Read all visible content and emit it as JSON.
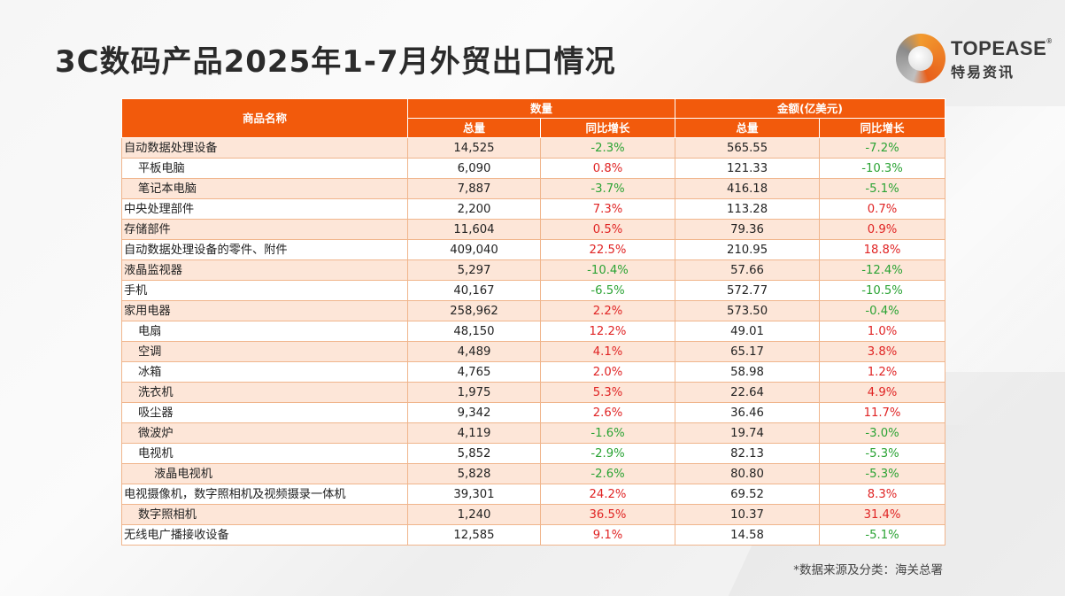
{
  "title": "3C数码产品2025年1-7月外贸出口情况",
  "logo": {
    "brand_en": "TOPEASE",
    "reg_mark": "®",
    "brand_cn": "特易资讯"
  },
  "colors": {
    "header": "#f25a0c",
    "row_odd": "#fde6d8",
    "row_even": "#ffffff",
    "increase": "#e02424",
    "decrease": "#2ba334"
  },
  "table": {
    "col_name": "商品名称",
    "group_qty": "数量",
    "group_amount": "金额(亿美元)",
    "sub_total": "总量",
    "sub_yoy": "同比增长",
    "rows": [
      {
        "name": "自动数据处理设备",
        "level": 0,
        "qty": "14,525",
        "qty_yoy": "-2.3%",
        "amt": "565.55",
        "amt_yoy": "-7.2%"
      },
      {
        "name": "平板电脑",
        "level": 1,
        "qty": "6,090",
        "qty_yoy": "0.8%",
        "amt": "121.33",
        "amt_yoy": "-10.3%"
      },
      {
        "name": "笔记本电脑",
        "level": 1,
        "qty": "7,887",
        "qty_yoy": "-3.7%",
        "amt": "416.18",
        "amt_yoy": "-5.1%"
      },
      {
        "name": "中央处理部件",
        "level": 0,
        "qty": "2,200",
        "qty_yoy": "7.3%",
        "amt": "113.28",
        "amt_yoy": "0.7%"
      },
      {
        "name": "存储部件",
        "level": 0,
        "qty": "11,604",
        "qty_yoy": "0.5%",
        "amt": "79.36",
        "amt_yoy": "0.9%"
      },
      {
        "name": "自动数据处理设备的零件、附件",
        "level": 0,
        "qty": "409,040",
        "qty_yoy": "22.5%",
        "amt": "210.95",
        "amt_yoy": "18.8%"
      },
      {
        "name": "液晶监视器",
        "level": 0,
        "qty": "5,297",
        "qty_yoy": "-10.4%",
        "amt": "57.66",
        "amt_yoy": "-12.4%"
      },
      {
        "name": "手机",
        "level": 0,
        "qty": "40,167",
        "qty_yoy": "-6.5%",
        "amt": "572.77",
        "amt_yoy": "-10.5%"
      },
      {
        "name": "家用电器",
        "level": 0,
        "qty": "258,962",
        "qty_yoy": "2.2%",
        "amt": "573.50",
        "amt_yoy": "-0.4%"
      },
      {
        "name": "电扇",
        "level": 1,
        "qty": "48,150",
        "qty_yoy": "12.2%",
        "amt": "49.01",
        "amt_yoy": "1.0%"
      },
      {
        "name": "空调",
        "level": 1,
        "qty": "4,489",
        "qty_yoy": "4.1%",
        "amt": "65.17",
        "amt_yoy": "3.8%"
      },
      {
        "name": "冰箱",
        "level": 1,
        "qty": "4,765",
        "qty_yoy": "2.0%",
        "amt": "58.98",
        "amt_yoy": "1.2%"
      },
      {
        "name": "洗衣机",
        "level": 1,
        "qty": "1,975",
        "qty_yoy": "5.3%",
        "amt": "22.64",
        "amt_yoy": "4.9%"
      },
      {
        "name": "吸尘器",
        "level": 1,
        "qty": "9,342",
        "qty_yoy": "2.6%",
        "amt": "36.46",
        "amt_yoy": "11.7%"
      },
      {
        "name": "微波炉",
        "level": 1,
        "qty": "4,119",
        "qty_yoy": "-1.6%",
        "amt": "19.74",
        "amt_yoy": "-3.0%"
      },
      {
        "name": "电视机",
        "level": 1,
        "qty": "5,852",
        "qty_yoy": "-2.9%",
        "amt": "82.13",
        "amt_yoy": "-5.3%"
      },
      {
        "name": "液晶电视机",
        "level": 2,
        "qty": "5,828",
        "qty_yoy": "-2.6%",
        "amt": "80.80",
        "amt_yoy": "-5.3%"
      },
      {
        "name": "电视摄像机，数字照相机及视频摄录一体机",
        "level": 0,
        "qty": "39,301",
        "qty_yoy": "24.2%",
        "amt": "69.52",
        "amt_yoy": "8.3%"
      },
      {
        "name": "数字照相机",
        "level": 1,
        "qty": "1,240",
        "qty_yoy": "36.5%",
        "amt": "10.37",
        "amt_yoy": "31.4%"
      },
      {
        "name": "无线电广播接收设备",
        "level": 0,
        "qty": "12,585",
        "qty_yoy": "9.1%",
        "amt": "14.58",
        "amt_yoy": "-5.1%"
      }
    ]
  },
  "source_note": "*数据来源及分类：海关总署"
}
